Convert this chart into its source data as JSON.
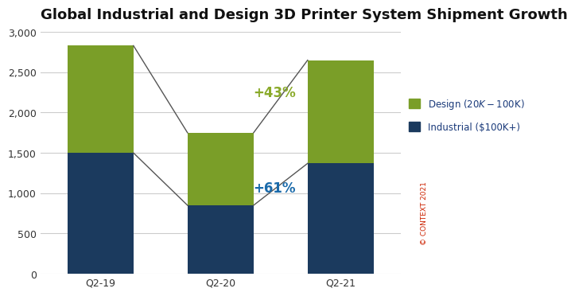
{
  "title": "Global Industrial and Design 3D Printer System Shipment Growth",
  "categories": [
    "Q2-19",
    "Q2-20",
    "Q2-21"
  ],
  "industrial": [
    1500,
    850,
    1370
  ],
  "design": [
    1330,
    900,
    1280
  ],
  "industrial_color": "#1b3a5e",
  "design_color": "#7a9e28",
  "line_color": "#555555",
  "ylim": [
    0,
    3000
  ],
  "yticks": [
    0,
    500,
    1000,
    1500,
    2000,
    2500,
    3000
  ],
  "annotation_61_text": "+61%",
  "annotation_43_text": "+43%",
  "annotation_61_color": "#1a6aaa",
  "annotation_43_color": "#8aaa2a",
  "legend_design": "Design ($20K - $100K)",
  "legend_industrial": "Industrial ($100K+)",
  "legend_text_color": "#1a3a7a",
  "watermark": "© CONTEXT 2021",
  "watermark_color": "#cc2200",
  "background_color": "#ffffff",
  "grid_color": "#cccccc",
  "title_fontsize": 13,
  "tick_fontsize": 9,
  "annotation_fontsize": 12
}
